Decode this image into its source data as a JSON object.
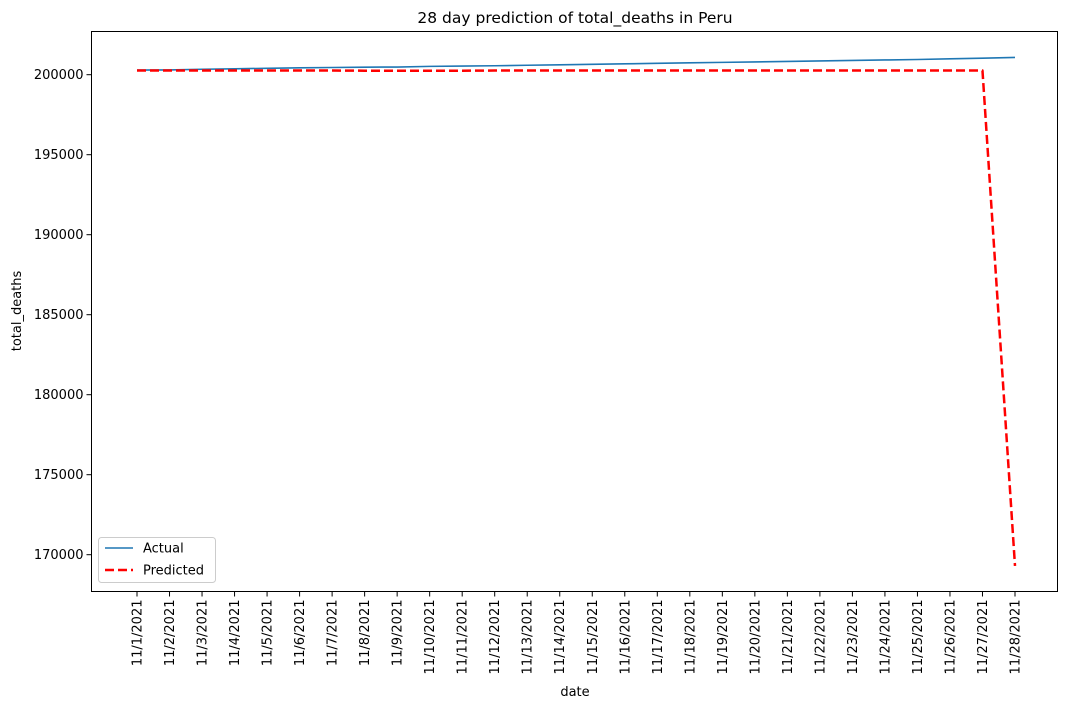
{
  "chart_data": {
    "type": "line",
    "title": "28 day prediction of total_deaths in Peru",
    "xlabel": "date",
    "ylabel": "total_deaths",
    "categories": [
      "11/1/2021",
      "11/2/2021",
      "11/3/2021",
      "11/4/2021",
      "11/5/2021",
      "11/6/2021",
      "11/7/2021",
      "11/8/2021",
      "11/9/2021",
      "11/10/2021",
      "11/11/2021",
      "11/12/2021",
      "11/13/2021",
      "11/14/2021",
      "11/15/2021",
      "11/16/2021",
      "11/17/2021",
      "11/18/2021",
      "11/19/2021",
      "11/20/2021",
      "11/21/2021",
      "11/22/2021",
      "11/23/2021",
      "11/24/2021",
      "11/25/2021",
      "11/26/2021",
      "11/27/2021",
      "11/28/2021"
    ],
    "ylim": [
      167700,
      202700
    ],
    "yticks": [
      170000,
      175000,
      180000,
      185000,
      190000,
      195000,
      200000
    ],
    "grid": false,
    "legend_position": "lower-left",
    "series": [
      {
        "name": "Actual",
        "color": "#1f77b4",
        "style": "solid",
        "values": [
          200290,
          200300,
          200340,
          200370,
          200400,
          200430,
          200450,
          200470,
          200480,
          200520,
          200540,
          200560,
          200590,
          200620,
          200650,
          200680,
          200710,
          200740,
          200770,
          200800,
          200830,
          200860,
          200890,
          200920,
          200950,
          200990,
          201030,
          201080
        ]
      },
      {
        "name": "Predicted",
        "color": "#ff0000",
        "style": "dashed",
        "values": [
          200260,
          200260,
          200260,
          200260,
          200260,
          200260,
          200260,
          200250,
          200250,
          200250,
          200250,
          200260,
          200260,
          200260,
          200260,
          200260,
          200260,
          200260,
          200260,
          200260,
          200260,
          200260,
          200260,
          200260,
          200260,
          200260,
          200260,
          169300
        ]
      }
    ]
  }
}
